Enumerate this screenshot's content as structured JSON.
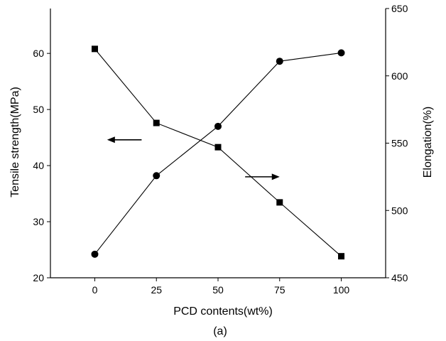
{
  "chart_data": {
    "type": "line",
    "xlabel": "PCD contents(wt%)",
    "ylabel": "Tensile strength(MPa)",
    "ylabel_right": "Elongation(%)",
    "panel_label": "(a)",
    "x": [
      0,
      25,
      50,
      75,
      100
    ],
    "xlim": [
      -18,
      118
    ],
    "ylim": [
      20,
      68
    ],
    "ylim_right": [
      450,
      650
    ],
    "x_ticks": [
      0,
      25,
      50,
      75,
      100
    ],
    "y_ticks": [
      20,
      30,
      40,
      50,
      60
    ],
    "y_ticks_right": [
      450,
      500,
      550,
      600,
      650
    ],
    "grid": false,
    "series": [
      {
        "axis": "left",
        "marker": "circle",
        "values": [
          24.2,
          38.2,
          47.0,
          58.6,
          60.1
        ]
      },
      {
        "axis": "right",
        "marker": "square",
        "values": [
          620,
          565,
          547,
          506,
          466
        ]
      }
    ],
    "annotations": [
      {
        "type": "arrow",
        "direction": "left",
        "x_start": 19,
        "x_end": 5,
        "y": 44.6,
        "axis": "left"
      },
      {
        "type": "arrow",
        "direction": "right",
        "x_start": 61,
        "x_end": 75,
        "y": 525,
        "axis": "right"
      }
    ]
  }
}
